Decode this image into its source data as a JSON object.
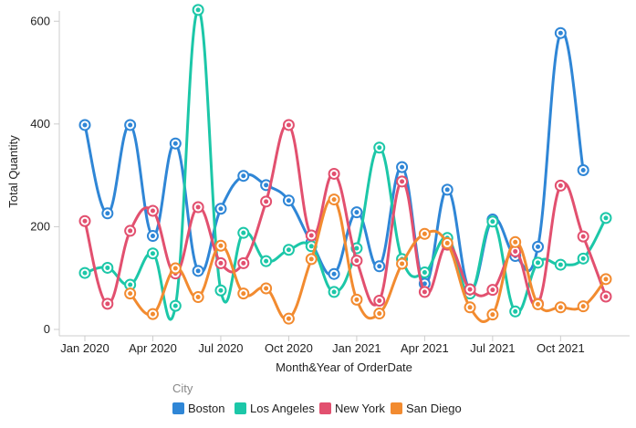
{
  "chart_data": {
    "type": "line",
    "xlabel": "Month&Year of OrderDate",
    "ylabel": "Total Quantity",
    "ylim": [
      0,
      620
    ],
    "yticks": [
      0,
      200,
      400,
      600
    ],
    "grid": false,
    "legend_position": "bottom-left",
    "legend_title": "City",
    "x": [
      "2020-01",
      "2020-02",
      "2020-03",
      "2020-04",
      "2020-05",
      "2020-06",
      "2020-07",
      "2020-08",
      "2020-09",
      "2020-10",
      "2020-11",
      "2020-12",
      "2021-01",
      "2021-02",
      "2021-03",
      "2021-04",
      "2021-05",
      "2021-06",
      "2021-07",
      "2021-08",
      "2021-09",
      "2021-10",
      "2021-11",
      "2021-12"
    ],
    "xticks": [
      {
        "x": "2020-01",
        "label": "Jan 2020"
      },
      {
        "x": "2020-04",
        "label": "Apr 2020"
      },
      {
        "x": "2020-07",
        "label": "Jul 2020"
      },
      {
        "x": "2020-10",
        "label": "Oct 2020"
      },
      {
        "x": "2021-01",
        "label": "Jan 2021"
      },
      {
        "x": "2021-04",
        "label": "Apr 2021"
      },
      {
        "x": "2021-07",
        "label": "Jul 2021"
      },
      {
        "x": "2021-10",
        "label": "Oct 2021"
      }
    ],
    "series": [
      {
        "name": "Boston",
        "color": "#2f86d6",
        "values": [
          398,
          226,
          398,
          182,
          362,
          114,
          235,
          299,
          281,
          251,
          169,
          108,
          228,
          123,
          316,
          89,
          272,
          78,
          214,
          143,
          161,
          577,
          310,
          null
        ]
      },
      {
        "name": "Los Angeles",
        "color": "#1cc7a8",
        "values": [
          110,
          120,
          87,
          148,
          46,
          622,
          76,
          188,
          133,
          155,
          162,
          73,
          158,
          354,
          137,
          111,
          178,
          70,
          210,
          35,
          130,
          126,
          138,
          217
        ]
      },
      {
        "name": "New York",
        "color": "#e2506f",
        "values": [
          211,
          50,
          192,
          231,
          109,
          238,
          129,
          129,
          249,
          398,
          183,
          303,
          134,
          56,
          288,
          73,
          165,
          78,
          77,
          152,
          50,
          280,
          181,
          64
        ]
      },
      {
        "name": "San Diego",
        "color": "#f28b30",
        "values": [
          null,
          null,
          70,
          30,
          119,
          63,
          163,
          70,
          80,
          21,
          137,
          253,
          58,
          31,
          128,
          186,
          168,
          43,
          29,
          170,
          49,
          43,
          45,
          98
        ]
      }
    ]
  }
}
